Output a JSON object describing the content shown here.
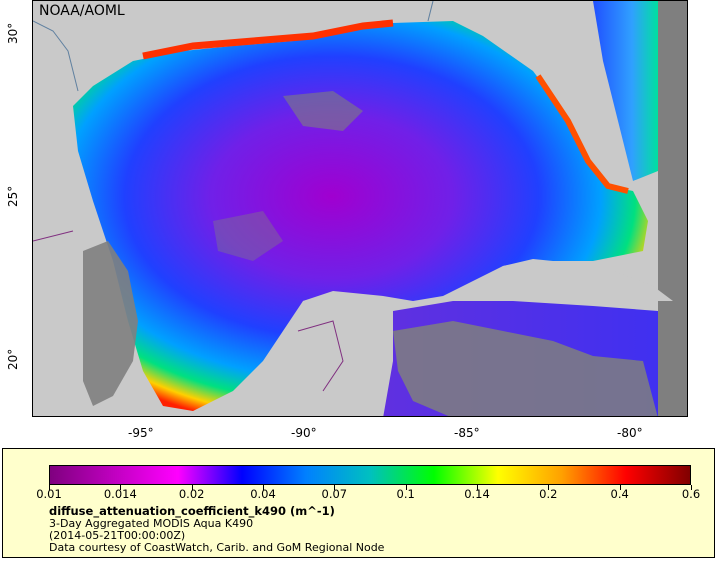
{
  "map": {
    "agency": "NOAA/AOML",
    "x_ticks": [
      "-95°",
      "-90°",
      "-85°",
      "-80°"
    ],
    "y_ticks": [
      "30°",
      "25°",
      "20°"
    ]
  },
  "legend": {
    "scale_labels": [
      "0.01",
      "0.014",
      "0.02",
      "0.04",
      "0.07",
      "0.1",
      "0.14",
      "0.2",
      "0.4",
      "0.6"
    ],
    "title": "diffuse_attenuation_coefficient_k490 (m^-1)",
    "subtitle1": "3-Day Aggregated MODIS Aqua K490",
    "subtitle2": "(2014-05-21T00:00:00Z)",
    "subtitle3": "Data courtesy of CoastWatch, Carib. and GoM Regional Node"
  },
  "colors": {
    "land": "#c9c9c9",
    "no_data": "#7f7f7f",
    "panel": "#ffffcc",
    "scale": [
      "#7f007f",
      "#c000c0",
      "#ff00ff",
      "#0000ff",
      "#0080ff",
      "#00c0c0",
      "#00ff00",
      "#ffff00",
      "#ffa000",
      "#ff0000",
      "#800000"
    ]
  }
}
